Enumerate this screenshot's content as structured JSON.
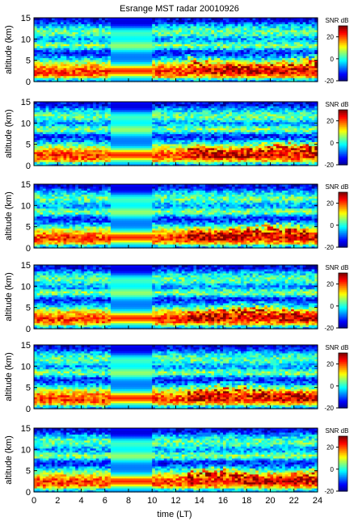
{
  "title": "Esrange MST radar 20010926",
  "chart_data": {
    "type": "heatmap",
    "title": "Esrange MST radar 20010926",
    "xlabel": "time (LT)",
    "ylabel": "altitude (km)",
    "xlim": [
      0,
      24
    ],
    "ylim": [
      0,
      15
    ],
    "xticks": [
      0,
      2,
      4,
      6,
      8,
      10,
      12,
      14,
      16,
      18,
      20,
      22,
      24
    ],
    "yticks": [
      0,
      5,
      10,
      15
    ],
    "colorbar": {
      "label": "SNR dB",
      "range": [
        -20,
        30
      ],
      "ticks": [
        20,
        0,
        -20
      ]
    },
    "colormap": [
      "#00008f",
      "#0000ff",
      "#0080ff",
      "#00ffff",
      "#80ff80",
      "#ffff00",
      "#ff8000",
      "#ff0000",
      "#800000"
    ],
    "panels": [
      {
        "index": 1
      },
      {
        "index": 2
      },
      {
        "index": 3
      },
      {
        "index": 4
      },
      {
        "index": 5
      },
      {
        "index": 6
      }
    ],
    "grid": false
  }
}
